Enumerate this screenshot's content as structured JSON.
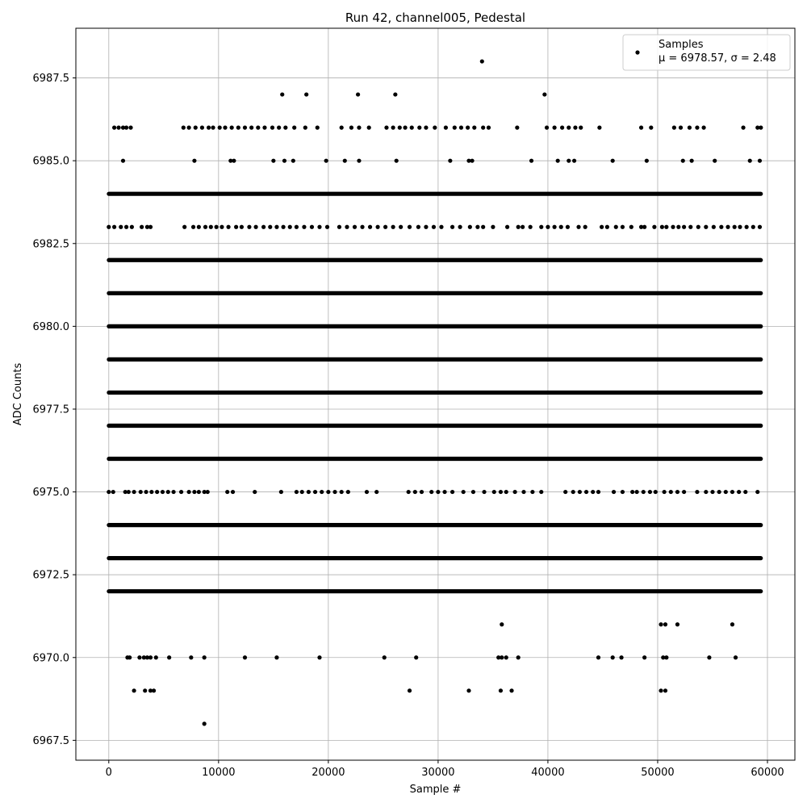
{
  "chart_data": {
    "type": "scatter",
    "title": "Run 42, channel005, Pedestal",
    "xlabel": "Sample #",
    "ylabel": "ADC Counts",
    "xlim": [
      -3000,
      62500
    ],
    "ylim": [
      6966.9,
      6989.0
    ],
    "x_ticks": [
      0,
      10000,
      20000,
      30000,
      40000,
      50000,
      60000
    ],
    "x_tick_labels": [
      "0",
      "10000",
      "20000",
      "30000",
      "40000",
      "50000",
      "60000"
    ],
    "y_ticks": [
      6967.5,
      6970.0,
      6972.5,
      6975.0,
      6977.5,
      6980.0,
      6982.5,
      6985.0,
      6987.5
    ],
    "y_tick_labels": [
      "6967.5",
      "6970.0",
      "6972.5",
      "6975.0",
      "6977.5",
      "6980.0",
      "6982.5",
      "6985.0",
      "6987.5"
    ],
    "grid": true,
    "legend_position": "top-right",
    "marker_color": "#000000",
    "series": [
      {
        "name": "Samples",
        "legend_text": "Samples",
        "legend_stats": "μ = 6978.57, σ = 2.48",
        "sample_count": 59500,
        "levels": [
          {
            "y": 6988,
            "x": [
              34000
            ]
          },
          {
            "y": 6987,
            "x": [
              15800,
              18000,
              22700,
              26100,
              39700
            ]
          },
          {
            "y": 6986,
            "x": [
              500,
              900,
              1300,
              1600,
              2000,
              6800,
              7300,
              7900,
              8500,
              9100,
              9500,
              10100,
              10600,
              11200,
              11800,
              12400,
              13000,
              13600,
              14200,
              14900,
              15500,
              16100,
              16900,
              17900,
              19000,
              21200,
              22100,
              22800,
              23700,
              25300,
              25900,
              26500,
              27000,
              27600,
              28300,
              28900,
              29700,
              30700,
              31500,
              32100,
              32700,
              33300,
              34100,
              34600,
              37200,
              39900,
              40600,
              41300,
              41900,
              42500,
              43000,
              44700,
              48500,
              49400,
              51500,
              52100,
              52900,
              53600,
              54200,
              57800,
              59100,
              59400
            ]
          },
          {
            "y": 6985,
            "x": [
              1300,
              7800,
              11100,
              11400,
              15000,
              16000,
              16800,
              19800,
              21500,
              22800,
              26200,
              31100,
              32800,
              33100,
              38500,
              40900,
              41900,
              42400,
              45900,
              49000,
              52300,
              53100,
              55200,
              58400,
              59300
            ]
          },
          {
            "y": 6984,
            "x": [
              0,
              20000,
              40000,
              59400
            ],
            "dense": true
          },
          {
            "y": 6983,
            "x": [
              0,
              500,
              1100,
              1600,
              2100,
              3000,
              3500,
              3800,
              6900,
              7700,
              8200,
              8800,
              9300,
              9800,
              10300,
              10900,
              11600,
              12100,
              12800,
              13400,
              14100,
              14700,
              15300,
              15900,
              16500,
              17100,
              17800,
              18500,
              19200,
              19900,
              21000,
              21700,
              22400,
              23100,
              23800,
              24500,
              25200,
              25900,
              26600,
              27400,
              28200,
              28900,
              29600,
              30300,
              31300,
              32000,
              32900,
              33600,
              34100,
              35000,
              36300,
              37300,
              37700,
              38400,
              39400,
              40000,
              40600,
              41200,
              41800,
              42800,
              43400,
              44900,
              45400,
              46200,
              46800,
              47600,
              48500,
              48800,
              49700,
              50400,
              50800,
              51400,
              51900,
              52400,
              53000,
              53700,
              54400,
              55100,
              55800,
              56400,
              57000,
              57500,
              58100,
              58700,
              59300
            ]
          },
          {
            "y": 6982,
            "x": [
              0,
              20000,
              40000,
              59400
            ],
            "dense": true
          },
          {
            "y": 6981,
            "x": [
              0,
              20000,
              40000,
              59400
            ],
            "dense": true
          },
          {
            "y": 6980,
            "x": [
              0,
              20000,
              40000,
              59400
            ],
            "dense": true
          },
          {
            "y": 6979,
            "x": [
              0,
              20000,
              40000,
              59400
            ],
            "dense": true
          },
          {
            "y": 6978,
            "x": [
              0,
              20000,
              40000,
              59400
            ],
            "dense": true
          },
          {
            "y": 6977,
            "x": [
              0,
              20000,
              40000,
              59400
            ],
            "dense": true
          },
          {
            "y": 6976,
            "x": [
              0,
              20000,
              40000,
              59400
            ],
            "dense": true
          },
          {
            "y": 6975,
            "x": [
              0,
              400,
              1500,
              1800,
              2300,
              2900,
              3400,
              3900,
              4400,
              4900,
              5400,
              5900,
              6600,
              7300,
              7800,
              8200,
              8700,
              9000,
              10800,
              11300,
              13300,
              15700,
              17100,
              17600,
              18200,
              18800,
              19400,
              20000,
              20600,
              21200,
              21800,
              23500,
              24400,
              27300,
              27900,
              28500,
              29400,
              30000,
              30600,
              31300,
              32300,
              33200,
              34200,
              35100,
              35700,
              36200,
              37000,
              37800,
              38600,
              39400,
              41600,
              42300,
              42900,
              43500,
              44100,
              44600,
              46000,
              46800,
              47700,
              48100,
              48700,
              49300,
              49800,
              50600,
              51200,
              51800,
              52400,
              53600,
              54400,
              55000,
              55600,
              56200,
              56800,
              57400,
              58000,
              59100
            ]
          },
          {
            "y": 6974,
            "x": [
              0,
              20000,
              40000,
              59400
            ],
            "dense": true
          },
          {
            "y": 6973,
            "x": [
              0,
              20000,
              40000,
              59400
            ],
            "dense": true
          },
          {
            "y": 6972,
            "x": [
              0,
              20000,
              40000,
              59400
            ],
            "dense": true
          },
          {
            "y": 6971,
            "x": [
              35800,
              50300,
              50700,
              51800,
              56800
            ]
          },
          {
            "y": 6970,
            "x": [
              1700,
              1900,
              2800,
              3200,
              3500,
              3800,
              4300,
              5500,
              7500,
              8700,
              12400,
              15300,
              19200,
              25100,
              28000,
              35500,
              35800,
              36200,
              37300,
              44600,
              45900,
              46700,
              48800,
              50500,
              50800,
              54700,
              57100
            ]
          },
          {
            "y": 6969,
            "x": [
              2300,
              3300,
              3800,
              4100,
              27400,
              32800,
              35700,
              36700,
              50300,
              50700
            ]
          },
          {
            "y": 6968,
            "x": [
              8700
            ]
          }
        ]
      }
    ]
  }
}
